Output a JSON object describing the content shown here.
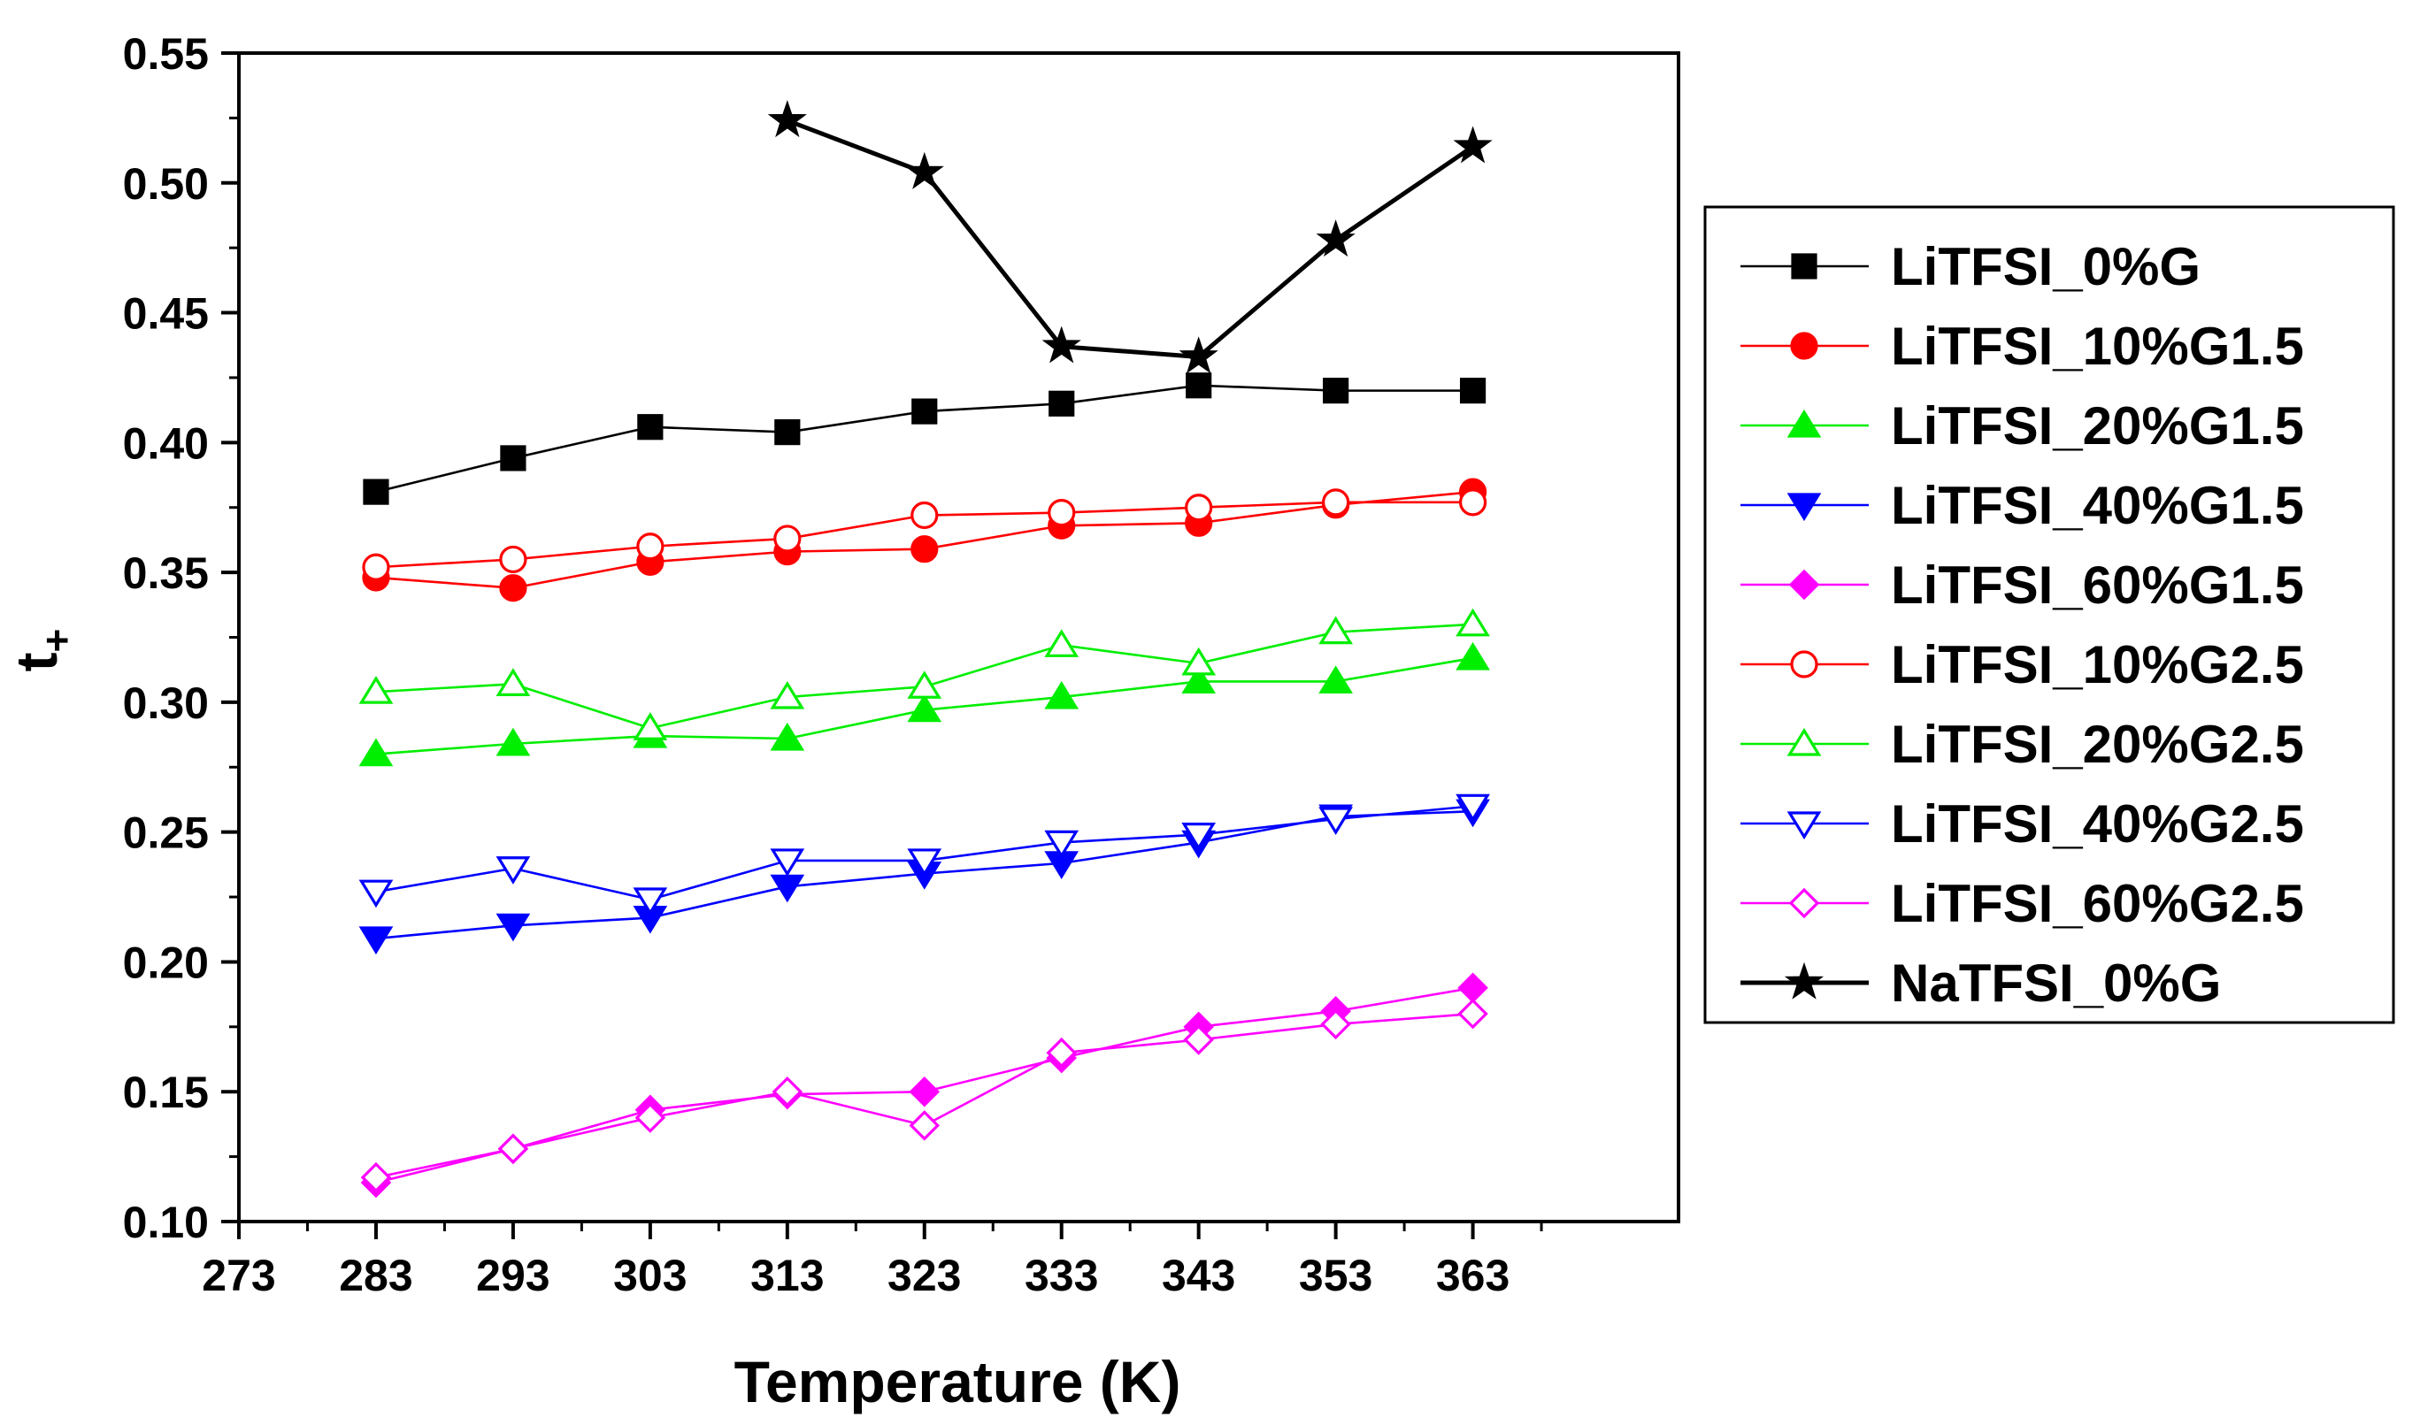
{
  "chart_data": {
    "type": "line",
    "title": "",
    "xlabel": "Temperature (K)",
    "ylabel_main": "t",
    "ylabel_sub": "+",
    "xlim": [
      273,
      378
    ],
    "ylim": [
      0.1,
      0.55
    ],
    "x_ticks": [
      273,
      283,
      293,
      303,
      313,
      323,
      333,
      343,
      353,
      363
    ],
    "y_ticks": [
      0.1,
      0.15,
      0.2,
      0.25,
      0.3,
      0.35,
      0.4,
      0.45,
      0.5,
      0.55
    ],
    "y_tick_labels": [
      "0.10",
      "0.15",
      "0.20",
      "0.25",
      "0.30",
      "0.35",
      "0.40",
      "0.45",
      "0.50",
      "0.55"
    ],
    "legend_position": "right",
    "series": [
      {
        "name": "LiTFSI_0%G",
        "color": "#000000",
        "marker": "square",
        "filled": true,
        "x": [
          283,
          293,
          303,
          313,
          323,
          333,
          343,
          353,
          363
        ],
        "y": [
          0.381,
          0.394,
          0.406,
          0.404,
          0.412,
          0.415,
          0.422,
          0.42,
          0.42
        ]
      },
      {
        "name": "LiTFSI_10%G1.5",
        "color": "#ff0000",
        "marker": "circle",
        "filled": true,
        "x": [
          283,
          293,
          303,
          313,
          323,
          333,
          343,
          353,
          363
        ],
        "y": [
          0.348,
          0.344,
          0.354,
          0.358,
          0.359,
          0.368,
          0.369,
          0.376,
          0.381
        ]
      },
      {
        "name": "LiTFSI_20%G1.5",
        "color": "#00ee00",
        "marker": "triangle-up",
        "filled": true,
        "x": [
          283,
          293,
          303,
          313,
          323,
          333,
          343,
          353,
          363
        ],
        "y": [
          0.28,
          0.284,
          0.287,
          0.286,
          0.297,
          0.302,
          0.308,
          0.308,
          0.317
        ]
      },
      {
        "name": "LiTFSI_40%G1.5",
        "color": "#0000ff",
        "marker": "triangle-down",
        "filled": true,
        "x": [
          283,
          293,
          303,
          313,
          323,
          333,
          343,
          353,
          363
        ],
        "y": [
          0.209,
          0.214,
          0.217,
          0.229,
          0.234,
          0.238,
          0.246,
          0.256,
          0.258
        ]
      },
      {
        "name": "LiTFSI_60%G1.5",
        "color": "#ff00ff",
        "marker": "diamond",
        "filled": true,
        "x": [
          283,
          293,
          303,
          313,
          323,
          333,
          343,
          353,
          363
        ],
        "y": [
          0.115,
          0.128,
          0.143,
          0.149,
          0.15,
          0.163,
          0.175,
          0.181,
          0.19
        ]
      },
      {
        "name": "LiTFSI_10%G2.5",
        "color": "#ff0000",
        "marker": "circle",
        "filled": false,
        "x": [
          283,
          293,
          303,
          313,
          323,
          333,
          343,
          353,
          363
        ],
        "y": [
          0.352,
          0.355,
          0.36,
          0.363,
          0.372,
          0.373,
          0.375,
          0.377,
          0.377
        ]
      },
      {
        "name": "LiTFSI_20%G2.5",
        "color": "#00ee00",
        "marker": "triangle-up",
        "filled": false,
        "x": [
          283,
          293,
          303,
          313,
          323,
          333,
          343,
          353,
          363
        ],
        "y": [
          0.304,
          0.307,
          0.29,
          0.302,
          0.306,
          0.322,
          0.315,
          0.327,
          0.33
        ]
      },
      {
        "name": "LiTFSI_40%G2.5",
        "color": "#0000ff",
        "marker": "triangle-down",
        "filled": false,
        "x": [
          283,
          293,
          303,
          313,
          323,
          333,
          343,
          353,
          363
        ],
        "y": [
          0.227,
          0.236,
          0.224,
          0.239,
          0.239,
          0.246,
          0.249,
          0.255,
          0.26
        ]
      },
      {
        "name": "LiTFSI_60%G2.5",
        "color": "#ff00ff",
        "marker": "diamond",
        "filled": false,
        "x": [
          283,
          293,
          303,
          313,
          323,
          333,
          343,
          353,
          363
        ],
        "y": [
          0.117,
          0.128,
          0.14,
          0.15,
          0.137,
          0.165,
          0.17,
          0.176,
          0.18
        ]
      },
      {
        "name": "NaTFSI_0%G",
        "color": "#000000",
        "marker": "star",
        "filled": true,
        "thick": true,
        "x": [
          313,
          323,
          333,
          343,
          353,
          363
        ],
        "y": [
          0.524,
          0.504,
          0.437,
          0.433,
          0.478,
          0.514
        ]
      }
    ]
  }
}
